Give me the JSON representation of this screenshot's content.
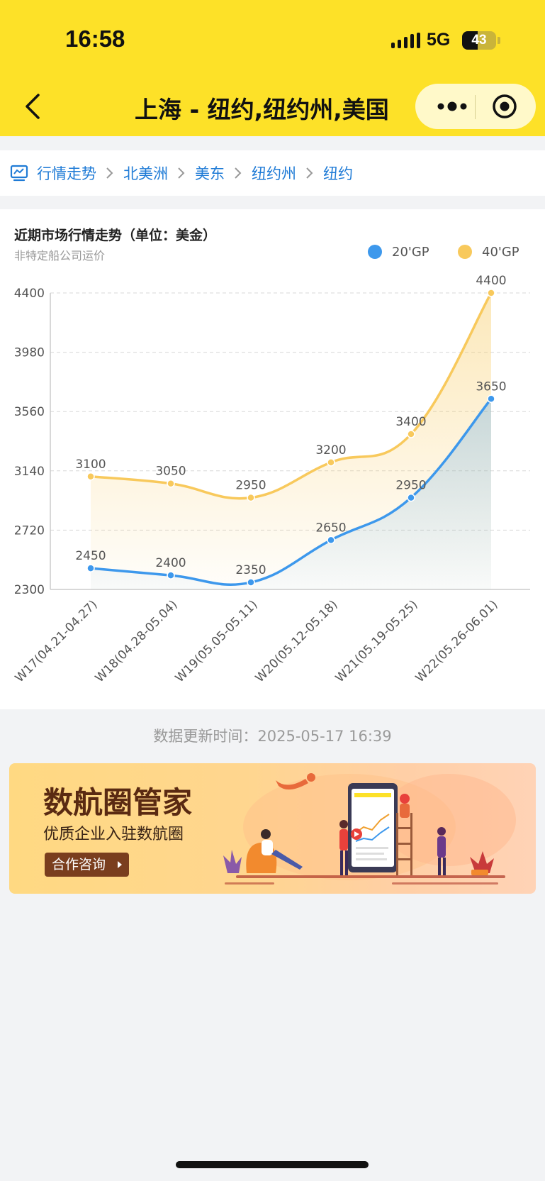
{
  "status_bar": {
    "time": "16:58",
    "network": "5G",
    "battery": "43"
  },
  "nav": {
    "title": "上海 - 纽约,纽约州,美国"
  },
  "breadcrumb": {
    "items": [
      "行情走势",
      "北美洲",
      "美东",
      "纽约州",
      "纽约"
    ]
  },
  "chart": {
    "title": "近期市场行情走势（单位：美金）",
    "subtitle": "非特定船公司运价"
  },
  "chart_data": {
    "type": "line",
    "categories": [
      "W17(04.21-04.27)",
      "W18(04.28-05.04)",
      "W19(05.05-05.11)",
      "W20(05.12-05.18)",
      "W21(05.19-05.25)",
      "W22(05.26-06.01)"
    ],
    "series": [
      {
        "name": "20'GP",
        "color": "#3d98ec",
        "values": [
          2450,
          2400,
          2350,
          2650,
          2950,
          3650
        ]
      },
      {
        "name": "40'GP",
        "color": "#f8c95c",
        "values": [
          3100,
          3050,
          2950,
          3200,
          3400,
          4400
        ]
      }
    ],
    "yticks": [
      2300,
      2720,
      3140,
      3560,
      3980,
      4400
    ],
    "ylim": [
      2300,
      4400
    ],
    "grid": true,
    "legend": "top-right"
  },
  "footer": {
    "update_time": "数据更新时间：2025-05-17 16:39"
  },
  "banner": {
    "title": "数航圈管家",
    "subtitle": "优质企业入驻数航圈",
    "button": "合作咨询"
  }
}
